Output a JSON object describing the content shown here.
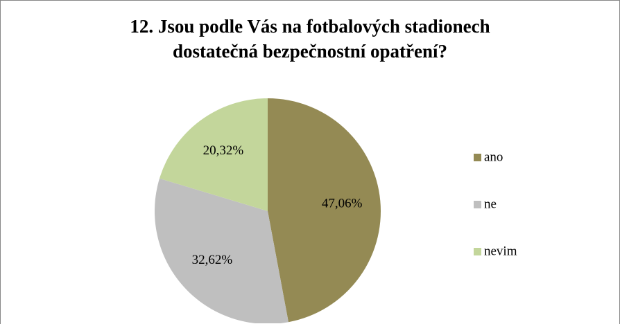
{
  "chart_data": {
    "type": "pie",
    "title": "12. Jsou podle Vás na fotbalových stadionech dostatečná bezpečnostní opatření?",
    "categories": [
      "ano",
      "ne",
      "nevim"
    ],
    "values": [
      47.06,
      32.62,
      20.32
    ],
    "value_labels": [
      "47,06%",
      "32,62%",
      "20,32%"
    ],
    "colors": [
      "#948a54",
      "#bfbfbf",
      "#c3d69b"
    ],
    "legend": "right"
  }
}
